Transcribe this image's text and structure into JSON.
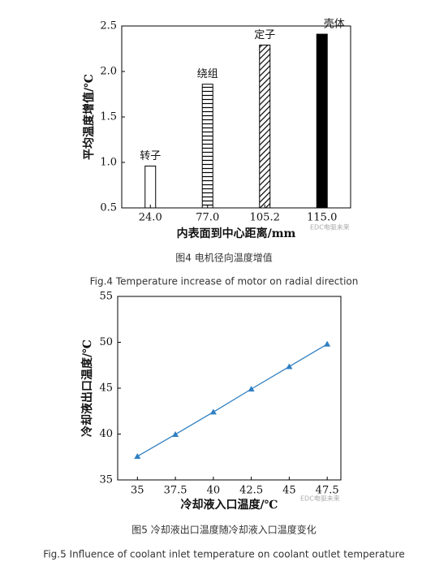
{
  "chart_data": [
    {
      "type": "bar",
      "ylabel": "平均温度增值/℃",
      "xlabel": "内表面到中心距离/mm",
      "categories": [
        "24.0",
        "77.0",
        "105.2",
        "115.0"
      ],
      "values": [
        0.96,
        1.86,
        2.29,
        2.41
      ],
      "bar_labels": [
        "转子",
        "绕组",
        "定子",
        "壳体"
      ],
      "patterns": [
        "none",
        "horizontal",
        "diagonal",
        "solid"
      ],
      "ylim": [
        0.5,
        2.5
      ],
      "yticks": [
        0.5,
        {
          "value": 1.0,
          "label": "1.0"
        },
        1.5,
        {
          "value": 2.0,
          "label": "2.0"
        },
        2.5
      ],
      "watermark": "EDC电驱未来",
      "caption": "图4 电机径向温度增值",
      "caption_en": "Fig.4 Temperature increase of motor on radial direction"
    },
    {
      "type": "line",
      "ylabel": "冷却液出口温度/℃",
      "xlabel": "冷却液入口温度/℃",
      "color": "#2f7fc1",
      "x": [
        35,
        37.5,
        40,
        42.5,
        45,
        47.5
      ],
      "values": [
        37.57,
        39.96,
        42.4,
        44.9,
        47.35,
        49.8
      ],
      "xlim": [
        33.7,
        48.4
      ],
      "xticks": [
        35,
        37.5,
        40,
        42.5,
        45,
        47.5
      ],
      "ylim": [
        35,
        55
      ],
      "yticks": [
        35,
        40,
        45,
        50,
        55
      ],
      "watermark": "EDC电驱未来",
      "caption": "图5 冷却液出口温度随冷却液入口温度变化",
      "caption_en": "Fig.5 Influence of coolant inlet temperature on coolant outlet temperature"
    }
  ]
}
